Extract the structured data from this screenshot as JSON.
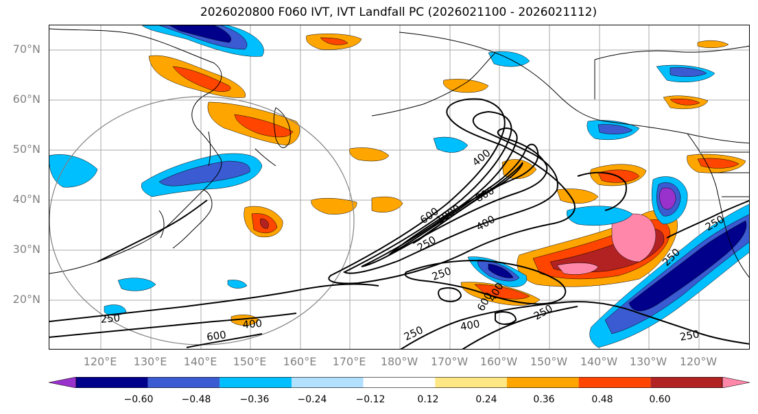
{
  "title": "2026020800 F060 IVT, IVT Landfall PC (2026021100 - 2026021112)",
  "lat_labels": [
    "70°N",
    "60°N",
    "50°N",
    "40°N",
    "30°N",
    "20°N"
  ],
  "lon_labels": [
    "120°E",
    "130°E",
    "140°E",
    "150°E",
    "160°E",
    "170°E",
    "180°W",
    "170°W",
    "160°W",
    "150°W",
    "140°W",
    "130°W",
    "120°W"
  ],
  "colorbar": {
    "colors": [
      "#9932CC",
      "#00008B",
      "#3A5BD1",
      "#00BFFF",
      "#B2E0FF",
      "#FFFFFF",
      "#FFE785",
      "#FFA500",
      "#FF4500",
      "#B22222",
      "#FF88AA"
    ],
    "ticks": [
      "−0.60",
      "−0.48",
      "−0.36",
      "−0.24",
      "−0.12",
      "0.12",
      "0.24",
      "0.36",
      "0.48",
      "0.60"
    ]
  },
  "contour_labels": [
    "250",
    "400",
    "600",
    "800",
    "1000",
    "600",
    "400",
    "250",
    "250",
    "400",
    "600",
    "400",
    "250",
    "250",
    "250",
    "400",
    "250",
    "250"
  ],
  "palette": {
    "land": "#000000",
    "grid": "#A9A9A9",
    "circle": "#808080"
  }
}
